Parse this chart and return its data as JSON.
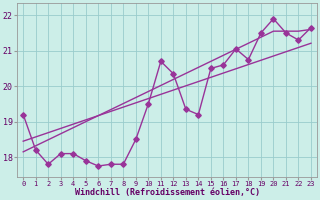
{
  "x": [
    0,
    1,
    2,
    3,
    4,
    5,
    6,
    7,
    8,
    9,
    10,
    11,
    12,
    13,
    14,
    15,
    16,
    17,
    18,
    19,
    20,
    21,
    22,
    23
  ],
  "y_data": [
    19.2,
    18.2,
    17.8,
    18.1,
    18.1,
    17.9,
    17.75,
    17.8,
    17.8,
    18.5,
    19.5,
    20.7,
    20.35,
    19.35,
    19.2,
    20.5,
    20.6,
    21.05,
    20.75,
    21.5,
    21.9,
    21.5,
    21.3,
    21.65
  ],
  "y_smooth1": [
    18.45,
    18.57,
    18.69,
    18.81,
    18.93,
    19.05,
    19.17,
    19.29,
    19.41,
    19.53,
    19.65,
    19.77,
    19.89,
    20.01,
    20.13,
    20.25,
    20.37,
    20.49,
    20.61,
    20.73,
    20.85,
    20.97,
    21.09,
    21.21
  ],
  "y_smooth2": [
    18.15,
    18.32,
    18.49,
    18.66,
    18.83,
    19.0,
    19.17,
    19.34,
    19.51,
    19.68,
    19.85,
    20.02,
    20.19,
    20.36,
    20.53,
    20.7,
    20.87,
    21.04,
    21.21,
    21.38,
    21.55,
    21.55,
    21.55,
    21.6
  ],
  "line_color": "#993399",
  "bg_color": "#cceee8",
  "grid_color": "#99cccc",
  "xlabel": "Windchill (Refroidissement éolien,°C)",
  "ylabel_ticks": [
    18,
    19,
    20,
    21,
    22
  ],
  "xlim": [
    -0.5,
    23.5
  ],
  "ylim": [
    17.45,
    22.35
  ],
  "marker": "D",
  "markersize": 2.8,
  "linewidth": 1.0
}
